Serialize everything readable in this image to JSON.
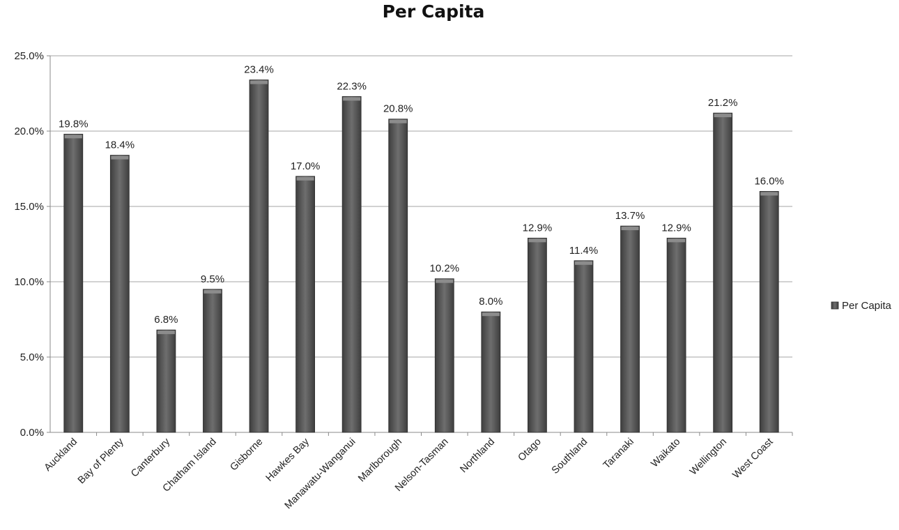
{
  "chart_data": {
    "type": "bar",
    "title": "Per Capita",
    "xlabel": "",
    "ylabel": "",
    "ylim": [
      0,
      25
    ],
    "yticks": [
      "0.0%",
      "5.0%",
      "10.0%",
      "15.0%",
      "20.0%",
      "25.0%"
    ],
    "yticks_values": [
      0,
      5,
      10,
      15,
      20,
      25
    ],
    "grid": true,
    "legend_position": "right",
    "categories": [
      "Auckland",
      "Bay of Plenty",
      "Canterbury",
      "Chatham Island",
      "Gisborne",
      "Hawkes Bay",
      "Manawatu-Wanganui",
      "Marlborough",
      "Nelson-Tasman",
      "Northland",
      "Otago",
      "Southland",
      "Taranaki",
      "Waikato",
      "Wellington",
      "West Coast"
    ],
    "series": [
      {
        "name": "Per Capita",
        "values": [
          19.8,
          18.4,
          6.8,
          9.5,
          23.4,
          17.0,
          22.3,
          20.8,
          10.2,
          8.0,
          12.9,
          11.4,
          13.7,
          12.9,
          21.2,
          16.0
        ],
        "labels": [
          "19.8%",
          "18.4%",
          "6.8%",
          "9.5%",
          "23.4%",
          "17.0%",
          "22.3%",
          "20.8%",
          "10.2%",
          "8.0%",
          "12.9%",
          "11.4%",
          "13.7%",
          "12.9%",
          "21.2%",
          "16.0%"
        ],
        "color": "#5a5a5a"
      }
    ]
  }
}
